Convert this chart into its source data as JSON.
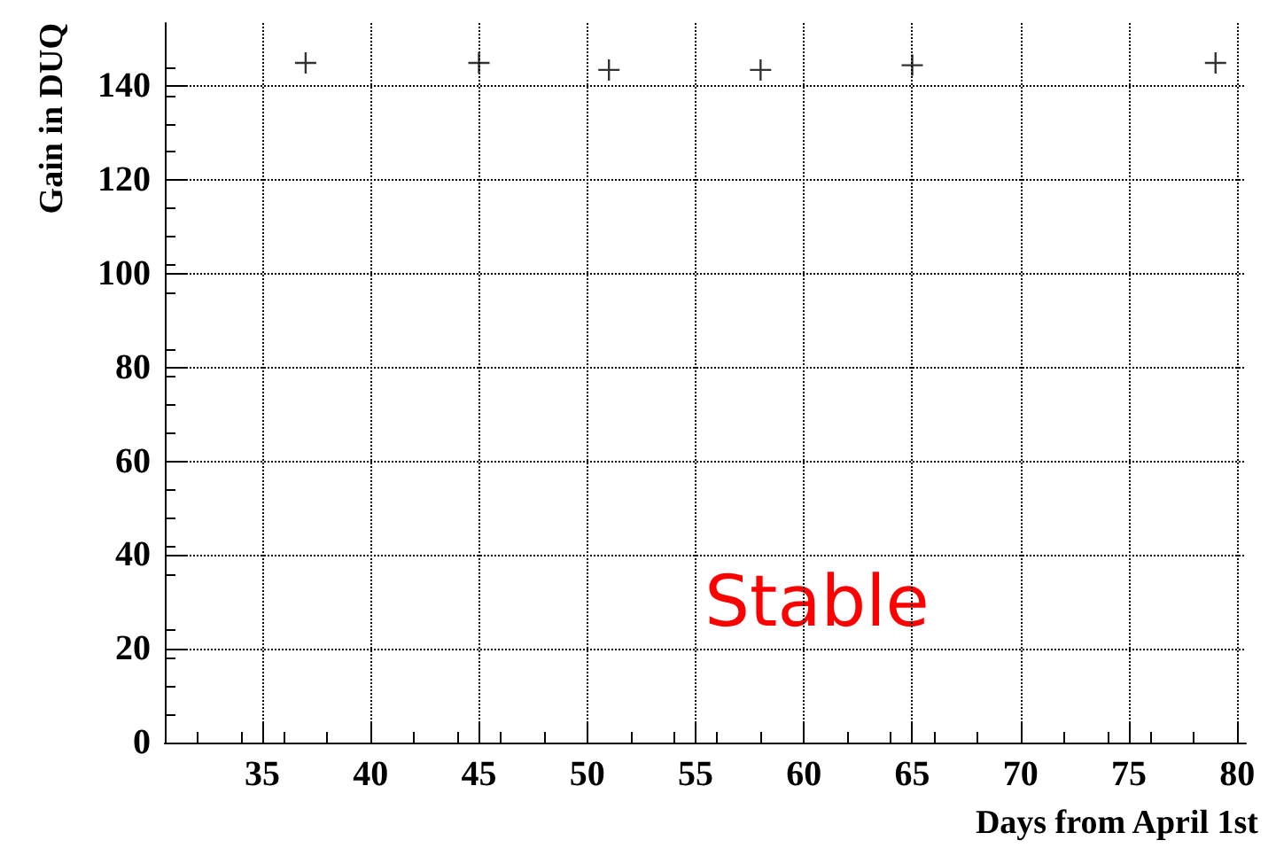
{
  "chart_data": {
    "type": "scatter",
    "xlabel": "Days from April 1st",
    "ylabel": "Gain in DUQ",
    "x": [
      37,
      45,
      51,
      58,
      65,
      79
    ],
    "series": [
      {
        "color": "#000000",
        "values": [
          145,
          145,
          143.5,
          143.5,
          144.5,
          145
        ]
      }
    ],
    "xlim": [
      30.5,
      80.4
    ],
    "xticks": [
      35,
      40,
      45,
      50,
      55,
      60,
      65,
      70,
      75,
      80
    ],
    "ylim": [
      0,
      153.5
    ],
    "yticks": [
      0,
      20,
      40,
      60,
      80,
      100,
      120,
      140
    ],
    "grid": true,
    "marker": "cross",
    "annotations": [
      "Stable"
    ]
  }
}
